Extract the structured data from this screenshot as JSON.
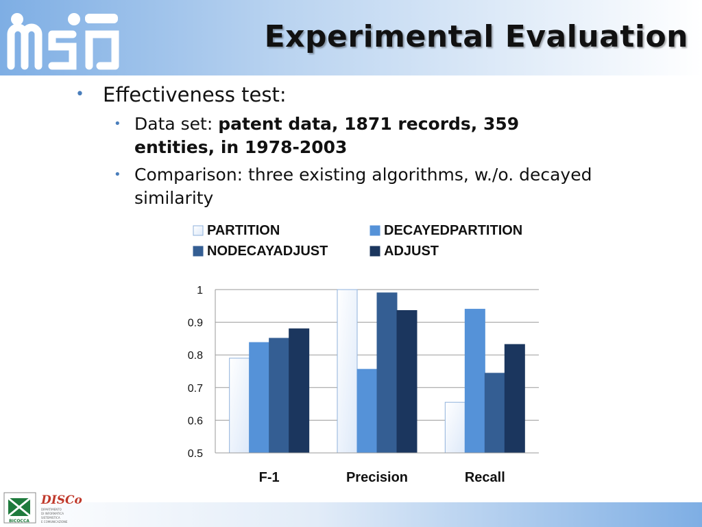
{
  "header": {
    "logo_text": "mSI",
    "title": "Experimental Evaluation"
  },
  "bullets": {
    "main": "Effectiveness test:",
    "items": [
      {
        "label": "Data set: ",
        "bold": "patent data, 1871 records, 359 entities, in 1978-2003"
      },
      {
        "label": "Comparison: three existing algorithms, w./o. decayed similarity",
        "bold": ""
      }
    ]
  },
  "colors": {
    "PARTITION": "#dde9f9",
    "DECAYEDPARTITION": "#5592d8",
    "NODECAYADJUST": "#345e93",
    "ADJUST": "#1b365e",
    "bullet": "#4a7ebb"
  },
  "chart_data": {
    "type": "bar",
    "categories": [
      "F-1",
      "Precision",
      "Recall"
    ],
    "series": [
      {
        "name": "PARTITION",
        "values": [
          0.79,
          1.0,
          0.655
        ]
      },
      {
        "name": "DECAYEDPARTITION",
        "values": [
          0.838,
          0.756,
          0.94
        ]
      },
      {
        "name": "NODECAYADJUST",
        "values": [
          0.851,
          0.99,
          0.744
        ]
      },
      {
        "name": "ADJUST",
        "values": [
          0.88,
          0.936,
          0.832
        ]
      }
    ],
    "ylim": [
      0.5,
      1
    ],
    "yticks": [
      "0.5",
      "0.6",
      "0.7",
      "0.8",
      "0.9",
      "1"
    ],
    "grid": true,
    "legend_position": "top"
  },
  "footer": {
    "logo_univ_text": "UNIVERSITÀ DEGLI STUDI DI MILANO BICOCCA",
    "logo_disco_text": "DISCo",
    "logo_disco_sub": "DIPARTIMENTO DI INFORMATICA SISTEMISTICA E COMUNICAZIONE"
  }
}
